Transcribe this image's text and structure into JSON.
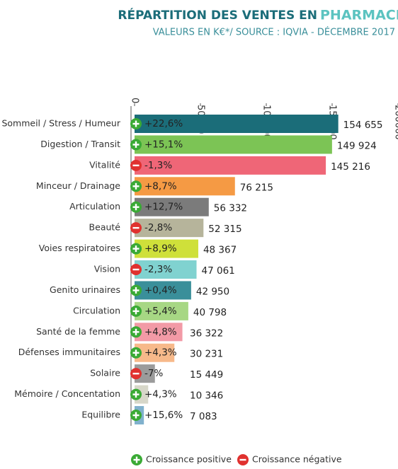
{
  "chart_data": {
    "type": "bar",
    "orientation": "horizontal",
    "title": "RÉPARTITION DES VENTES EN",
    "title_highlight": "PHARMACIE",
    "subtitle": "VALEURS EN K€*/ SOURCE :  IQVIA - DÉCEMBRE 2017",
    "categories": [
      "Sommeil / Stress / Humeur",
      "Digestion / Transit",
      "Vitalité",
      "Minceur / Drainage",
      "Articulation",
      "Beauté",
      "Voies respiratoires",
      "Vision",
      "Genito urinaires",
      "Circulation",
      "Santé de la femme",
      "Défenses immunitaires",
      "Solaire",
      "Mémoire / Concentation",
      "Equilibre"
    ],
    "values": [
      154655,
      149924,
      145216,
      76215,
      56332,
      52315,
      48367,
      47061,
      42950,
      40798,
      36322,
      30231,
      15449,
      10346,
      7083
    ],
    "value_labels": [
      "154 655",
      "149 924",
      "145 216",
      "76 215",
      "56 332",
      "52 315",
      "48 367",
      "47 061",
      "42 950",
      "40 798",
      "36 322",
      "30 231",
      "15 449",
      "10 346",
      "7 083"
    ],
    "colors": [
      "#1b6d79",
      "#7cc455",
      "#ef6677",
      "#f59a44",
      "#7b7b7b",
      "#b6b49b",
      "#cfe03a",
      "#80d2d0",
      "#3a8f9a",
      "#a7d784",
      "#f29aa6",
      "#f7b98a",
      "#9b9b9b",
      "#d7d7c9",
      "#80b1cd"
    ],
    "growth": [
      22.6,
      15.1,
      -1.3,
      8.7,
      12.7,
      -2.8,
      8.9,
      -2.3,
      0.4,
      5.4,
      4.8,
      4.3,
      -7,
      4.3,
      15.6
    ],
    "growth_labels": [
      "+22,6%",
      "+15,1%",
      "-1,3%",
      "+8,7%",
      "+12,7%",
      "-2,8%",
      "+8,9%",
      "-2,3%",
      "+0,4%",
      "+5,4%",
      "+4,8%",
      "+4,3%",
      "-7%",
      "+4,3%",
      "+15,6%"
    ],
    "xlim": [
      0,
      200000
    ],
    "xticks": [
      0,
      50000,
      100000,
      150000,
      200000
    ],
    "legend": {
      "positive": "Croissance positive",
      "negative": "Croissance négative",
      "positive_color": "#3aaa35",
      "negative_color": "#e0312f"
    }
  }
}
